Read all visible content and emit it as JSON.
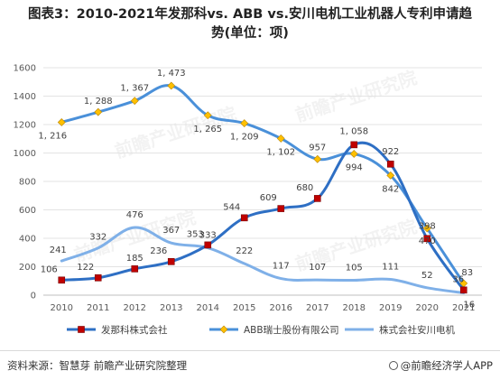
{
  "title_line1": "图表3：2010-2021年发那科vs. ABB vs.安川电机工业机器人专利申请趋",
  "title_line2": "势(单位：项)",
  "source": "资料来源：智慧芽 前瞻产业研究院整理",
  "brand": "@前瞻经济学人APP",
  "watermark": "前瞻产业研究院",
  "chart_data": {
    "type": "line",
    "title": "图表3：2010-2021年发那科vs. ABB vs.安川电机工业机器人专利申请趋势(单位：项)",
    "x": [
      "2010",
      "2011",
      "2012",
      "2013",
      "2014",
      "2015",
      "2016",
      "2017",
      "2018",
      "2019",
      "2020",
      "2021"
    ],
    "ylim": [
      0,
      1600
    ],
    "yticks": [
      0,
      200,
      400,
      600,
      800,
      1000,
      1200,
      1400,
      1600
    ],
    "grid": true,
    "legend": "bottom",
    "series": [
      {
        "name": "发那科株式会社",
        "values": [
          106,
          122,
          185,
          236,
          353,
          544,
          609,
          680,
          1058,
          922,
          398,
          36
        ],
        "labels": [
          "106",
          "122",
          "185",
          "236",
          "353",
          "544",
          "609",
          "680",
          "1, 058",
          "922",
          "398",
          "36"
        ],
        "color": "#2e6fc4",
        "marker": "square",
        "marker_color": "#c00000"
      },
      {
        "name": "ABB瑞士股份有限公司",
        "values": [
          1216,
          1288,
          1367,
          1473,
          1265,
          1209,
          1102,
          957,
          994,
          842,
          470,
          83
        ],
        "labels": [
          "1, 216",
          "1, 288",
          "1, 367",
          "1, 473",
          "1, 265",
          "1, 209",
          "1, 102",
          "957",
          "994",
          "842",
          "470",
          "83"
        ],
        "color": "#4a90d9",
        "marker": "diamond",
        "marker_color": "#ffc000"
      },
      {
        "name": "株式会社安川电机",
        "values": [
          241,
          332,
          476,
          367,
          333,
          222,
          117,
          107,
          105,
          111,
          52,
          16
        ],
        "labels": [
          "241",
          "332",
          "476",
          "367",
          "333",
          "222",
          "117",
          "107",
          "105",
          "111",
          "52",
          "16"
        ],
        "color": "#7fb0e8",
        "marker": "none",
        "marker_color": "#7fb0e8"
      }
    ]
  }
}
